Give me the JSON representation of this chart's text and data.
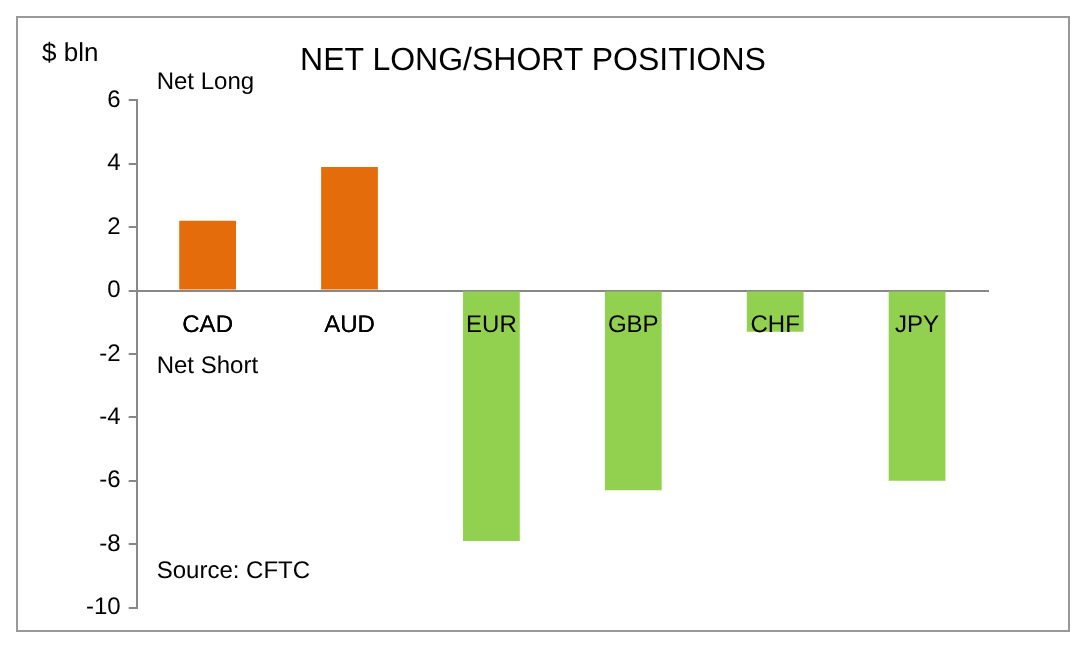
{
  "chart_data": {
    "type": "bar",
    "title": "NET LONG/SHORT POSITIONS",
    "ylabel": "$ bln",
    "categories": [
      "CAD",
      "AUD",
      "EUR",
      "GBP",
      "CHF",
      "JPY"
    ],
    "values": [
      2.2,
      3.9,
      -7.9,
      -6.3,
      -1.3,
      -6.0
    ],
    "colors": [
      "#e46c0a",
      "#e46c0a",
      "#92d050",
      "#92d050",
      "#92d050",
      "#92d050"
    ],
    "ylim": [
      -10,
      6
    ],
    "yticks": [
      -10,
      -8,
      -6,
      -4,
      -2,
      0,
      2,
      4,
      6
    ],
    "grid": false,
    "annotations": [
      "Net Long",
      "Net Short",
      "Source: CFTC"
    ]
  }
}
